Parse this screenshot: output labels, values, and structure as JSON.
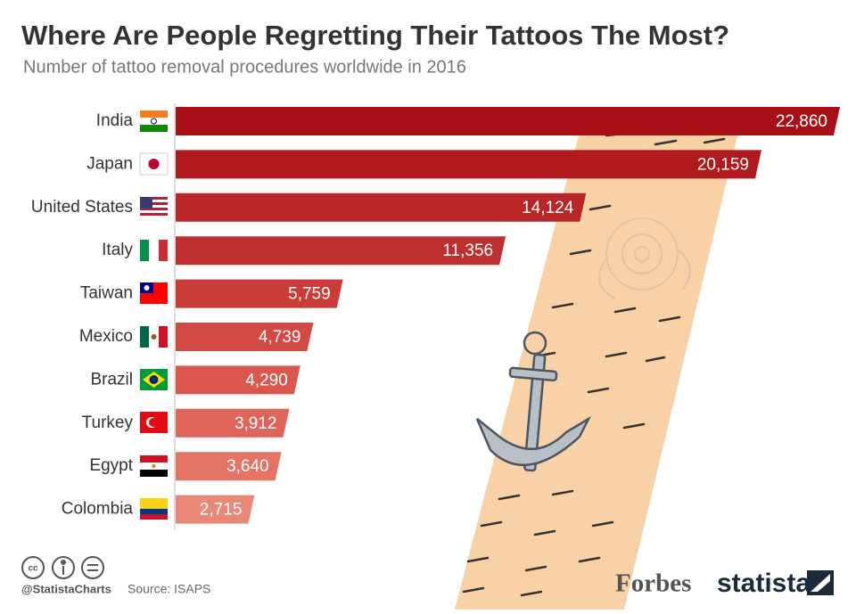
{
  "chart_data": {
    "type": "bar",
    "orientation": "horizontal",
    "title": "Where Are People Regretting Their Tattoos The Most?",
    "subtitle": "Number of tattoo removal procedures worldwide in 2016",
    "categories": [
      "India",
      "Japan",
      "United States",
      "Italy",
      "Taiwan",
      "Mexico",
      "Brazil",
      "Turkey",
      "Egypt",
      "Colombia"
    ],
    "values": [
      22860,
      20159,
      14124,
      11356,
      5759,
      4739,
      4290,
      3912,
      3640,
      2715
    ],
    "value_labels": [
      "22,860",
      "20,159",
      "14,124",
      "11,356",
      "5,759",
      "4,739",
      "4,290",
      "3,912",
      "3,640",
      "2,715"
    ],
    "colors": [
      "#a90f16",
      "#b01a1e",
      "#b82628",
      "#c02f2f",
      "#cb3b38",
      "#d24a44",
      "#d9574f",
      "#df655a",
      "#e57467",
      "#ea8878"
    ],
    "footer": {
      "handle": "@StatistaCharts",
      "source": "Source: ISAPS",
      "partner": "Forbes",
      "brand": "statista"
    }
  }
}
